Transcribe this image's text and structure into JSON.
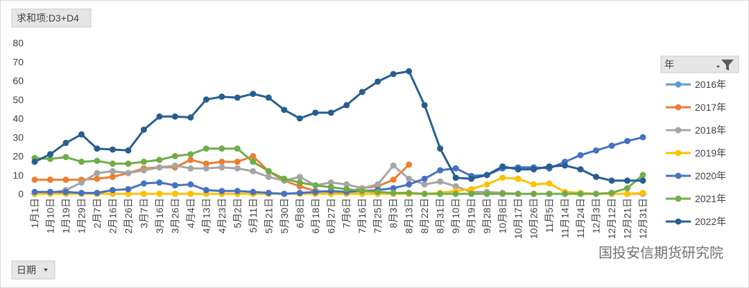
{
  "chart_data": {
    "type": "line",
    "filter_button": "求和项:D3+D4",
    "axis_button": "日期",
    "legend_title": "年",
    "watermark": "国投安信期货研究院",
    "categories": [
      "1月1日",
      "1月10日",
      "1月19日",
      "1月29日",
      "2月7日",
      "2月16日",
      "2月26日",
      "3月7日",
      "3月16日",
      "3月26日",
      "4月4日",
      "4月13日",
      "4月23日",
      "5月2日",
      "5月11日",
      "5月21日",
      "5月30日",
      "6月8日",
      "6月18日",
      "6月27日",
      "7月6日",
      "7月16日",
      "7月25日",
      "8月3日",
      "8月13日",
      "8月22日",
      "8月31日",
      "9月10日",
      "9月19日",
      "9月28日",
      "10月8日",
      "10月17日",
      "10月26日",
      "11月5日",
      "11月14日",
      "11月24日",
      "12月3日",
      "12月12日",
      "12月21日",
      "12月31日"
    ],
    "series": [
      {
        "name": "2016年",
        "color": "#5b9bd5",
        "values": [
          0,
          0,
          0,
          0,
          0,
          0,
          0,
          0,
          0,
          0,
          0,
          0,
          0,
          0,
          0,
          0,
          0,
          0,
          0,
          0,
          0,
          0,
          0,
          0,
          0,
          0,
          0,
          0,
          0,
          0,
          0,
          0,
          0,
          0,
          0,
          0,
          0,
          0,
          0,
          0
        ]
      },
      {
        "name": "2017年",
        "color": "#ed7d31",
        "values": [
          7.5,
          7.5,
          7.5,
          7.5,
          8,
          9,
          11,
          13.5,
          14,
          14,
          18,
          16,
          17,
          17,
          20,
          12,
          7,
          4,
          1.5,
          1,
          1,
          3,
          4,
          7.5,
          15.5,
          null,
          null,
          null,
          null,
          null,
          null,
          null,
          null,
          null,
          null,
          null,
          null,
          null,
          null,
          null
        ]
      },
      {
        "name": "2018年",
        "color": "#a5a5a5",
        "values": [
          0,
          0.5,
          2,
          6,
          11,
          12,
          11,
          12.5,
          14,
          15,
          13.5,
          13.5,
          14,
          13.5,
          12,
          9,
          7,
          9,
          4.5,
          6,
          5,
          3,
          5,
          15,
          8,
          5,
          6.5,
          4,
          1,
          1,
          0.5,
          0,
          0,
          0,
          0,
          0,
          0,
          0,
          0,
          0
        ]
      },
      {
        "name": "2019年",
        "color": "#ffc000",
        "values": [
          0,
          0,
          0,
          0,
          0,
          0,
          0,
          0,
          0,
          0,
          0,
          0,
          0,
          0,
          0,
          0,
          0,
          0,
          0,
          0,
          0,
          0,
          0,
          0,
          0,
          0,
          0.5,
          1.5,
          2.5,
          5,
          8.5,
          8,
          5,
          5.5,
          1,
          0.5,
          0,
          0,
          0,
          0.5
        ]
      },
      {
        "name": "2020年",
        "color": "#4472c4",
        "values": [
          1,
          1,
          1,
          0.5,
          0.5,
          2,
          2.5,
          5.5,
          6,
          4.5,
          5,
          2,
          1.5,
          1.5,
          1,
          0.5,
          0,
          0.5,
          1,
          1.5,
          1,
          1.5,
          2,
          3,
          5,
          8,
          12.5,
          13.5,
          9.5,
          10,
          13.5,
          14,
          14,
          13.5,
          17,
          20.5,
          23,
          25.5,
          28,
          30
        ]
      },
      {
        "name": "2021年",
        "color": "#70ad47",
        "values": [
          19,
          18.5,
          19.5,
          17,
          17.5,
          16,
          16,
          17,
          18,
          20,
          21,
          24,
          24,
          24,
          17,
          12,
          8,
          6,
          4.5,
          3.5,
          2.5,
          1.5,
          1,
          0.5,
          0.5,
          0,
          0,
          0,
          0,
          0,
          0,
          0,
          0,
          0,
          0,
          0,
          0,
          0.5,
          3,
          10
        ]
      },
      {
        "name": "2022年",
        "color": "#255e91",
        "values": [
          17,
          21,
          27,
          31.5,
          24,
          23.5,
          23,
          34,
          41,
          41,
          40.5,
          50,
          51.5,
          51,
          53,
          51,
          44.5,
          40,
          43,
          43,
          47,
          54,
          59.5,
          63.5,
          65,
          47,
          24,
          8.5,
          8,
          10,
          14.5,
          13,
          13,
          14.5,
          15,
          13,
          9,
          7,
          7,
          7
        ]
      }
    ],
    "ylim": [
      0,
      80
    ],
    "yticks": [
      0,
      10,
      20,
      30,
      40,
      50,
      60,
      70,
      80
    ],
    "grid": false,
    "legend": "right"
  }
}
